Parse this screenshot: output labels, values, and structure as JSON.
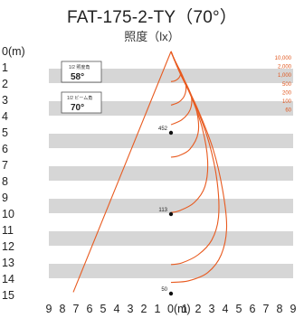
{
  "chart_data": {
    "type": "line",
    "title": "FAT-175-2-TY（70°）",
    "subtitle": "照度（lx）",
    "y_axis": {
      "ticks": [
        "0(m)",
        "1",
        "2",
        "3",
        "4",
        "5",
        "6",
        "7",
        "8",
        "9",
        "10",
        "11",
        "12",
        "13",
        "14",
        "15"
      ],
      "range": [
        0,
        15
      ]
    },
    "x_axis": {
      "ticks": [
        "9",
        "8",
        "7",
        "6",
        "5",
        "4",
        "3",
        "2",
        "1",
        "0(m)",
        "1",
        "2",
        "3",
        "4",
        "5",
        "6",
        "7",
        "8",
        "9"
      ],
      "range": [
        -9,
        9
      ]
    },
    "half_angle_box": {
      "label": "1/2 照度角",
      "value": "58°",
      "angle": 58
    },
    "half_beam_box": {
      "label": "1/2 ビーム角",
      "value": "70°",
      "angle": 70
    },
    "series": [
      {
        "name": "10,000",
        "points": [
          [
            0,
            0
          ],
          [
            0.2,
            0.4
          ],
          [
            0.5,
            0.9
          ],
          [
            0.7,
            1.3
          ],
          [
            0.6,
            1.6
          ],
          [
            0.3,
            1.8
          ],
          [
            0,
            1.85
          ]
        ]
      },
      {
        "name": "2,000",
        "points": [
          [
            0,
            0
          ],
          [
            0.3,
            0.6
          ],
          [
            0.8,
            1.4
          ],
          [
            1.1,
            2.1
          ],
          [
            1.0,
            2.7
          ],
          [
            0.6,
            3.1
          ],
          [
            0,
            3.3
          ]
        ]
      },
      {
        "name": "1,000",
        "points": [
          [
            0,
            0
          ],
          [
            0.4,
            0.8
          ],
          [
            1.0,
            1.8
          ],
          [
            1.5,
            2.8
          ],
          [
            1.4,
            3.6
          ],
          [
            0.8,
            4.2
          ],
          [
            0,
            4.5
          ]
        ]
      },
      {
        "name": "500",
        "points": [
          [
            0,
            0
          ],
          [
            0.5,
            1.0
          ],
          [
            1.3,
            2.3
          ],
          [
            1.9,
            3.7
          ],
          [
            2.0,
            5.0
          ],
          [
            1.4,
            6.0
          ],
          [
            0.6,
            6.4
          ],
          [
            0,
            6.5
          ]
        ]
      },
      {
        "name": "200",
        "points": [
          [
            0,
            0
          ],
          [
            0.6,
            1.2
          ],
          [
            1.5,
            2.8
          ],
          [
            2.3,
            4.7
          ],
          [
            2.7,
            6.7
          ],
          [
            2.5,
            8.3
          ],
          [
            1.7,
            9.3
          ],
          [
            0.6,
            9.8
          ],
          [
            0,
            9.9
          ]
        ]
      },
      {
        "name": "100",
        "points": [
          [
            0,
            0
          ],
          [
            0.7,
            1.4
          ],
          [
            1.8,
            3.3
          ],
          [
            2.8,
            5.6
          ],
          [
            3.4,
            8.0
          ],
          [
            3.5,
            10.2
          ],
          [
            3.0,
            11.6
          ],
          [
            2.0,
            12.5
          ],
          [
            0.8,
            13.0
          ],
          [
            0,
            13.1
          ]
        ]
      },
      {
        "name": "60",
        "points": [
          [
            0,
            0
          ],
          [
            0.8,
            1.5
          ],
          [
            2.0,
            3.6
          ],
          [
            3.1,
            6.0
          ],
          [
            3.8,
            8.5
          ],
          [
            4.1,
            10.8
          ],
          [
            3.7,
            12.5
          ],
          [
            2.7,
            13.6
          ],
          [
            1.3,
            14.1
          ],
          [
            0,
            14.2
          ]
        ]
      }
    ],
    "boundary_line": [
      [
        0,
        0
      ],
      [
        -7.2,
        14.8
      ]
    ],
    "center_points": [
      {
        "label": "452",
        "depth": 5
      },
      {
        "label": "113",
        "depth": 10
      },
      {
        "label": "50",
        "depth": 15
      }
    ],
    "colors": {
      "curve": "#e85a1f",
      "stripe": "#d6d6d6",
      "axis_text": "#222222",
      "box_border": "#555555"
    }
  }
}
